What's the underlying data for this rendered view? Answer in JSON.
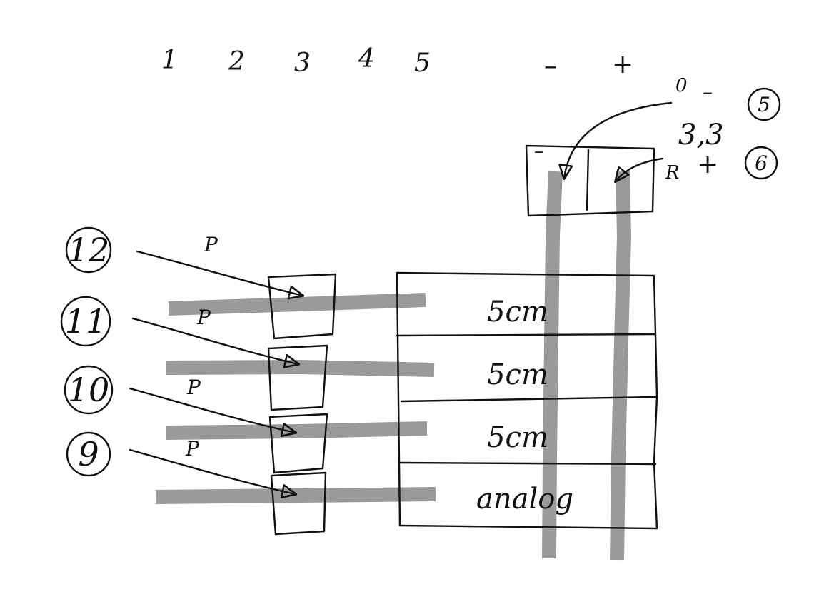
{
  "colors": {
    "ink": "#111111",
    "wire": "#9a9a9a",
    "background": "#ffffff"
  },
  "header": {
    "columns": [
      "1",
      "2",
      "3",
      "4",
      "5"
    ],
    "minus": "–",
    "plus": "+"
  },
  "power": {
    "gnd_value": "0",
    "gnd_sign": "–",
    "vcc_value": "3,3",
    "vcc_sign": "+",
    "vcc_resistor": "R",
    "box_minus": "–",
    "pin_gnd": "5",
    "pin_vcc": "6"
  },
  "sensors": [
    {
      "pin": "12",
      "signal": "P",
      "label": "5cm"
    },
    {
      "pin": "11",
      "signal": "P",
      "label": "5cm"
    },
    {
      "pin": "10",
      "signal": "P",
      "label": "5cm"
    },
    {
      "pin": "9",
      "signal": "P",
      "label": "analog"
    }
  ]
}
